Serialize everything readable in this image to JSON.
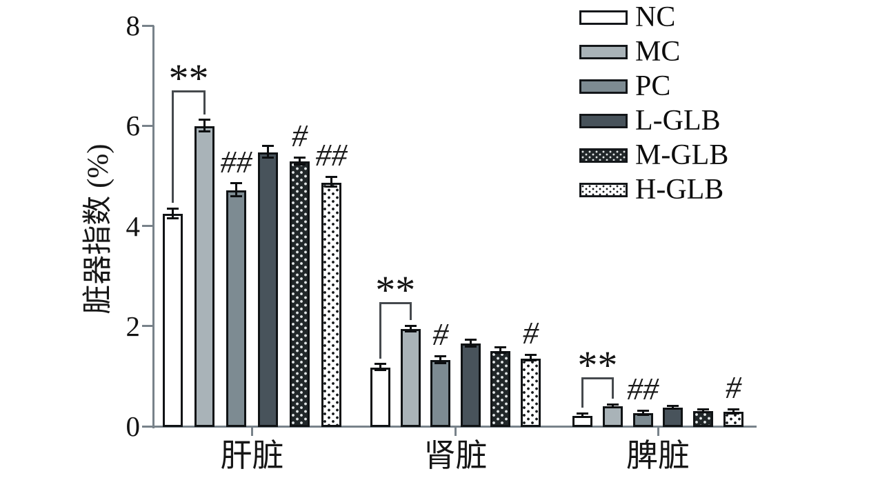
{
  "chart_data": {
    "type": "bar",
    "title": "",
    "ylabel": "脏器指数 (%)",
    "xlabel": "",
    "ylim": [
      0,
      8
    ],
    "yticks": [
      0,
      2,
      4,
      6,
      8
    ],
    "grid": false,
    "legend_position": "top-right",
    "categories": [
      "肝脏",
      "肾脏",
      "脾脏"
    ],
    "series": [
      {
        "name": "NC",
        "fill": "#ffffff",
        "pattern": "none",
        "dot_color": "",
        "values": [
          4.25,
          1.18,
          0.22
        ],
        "errors": [
          0.1,
          0.06,
          0.04
        ]
      },
      {
        "name": "MC",
        "fill": "#a9b3b8",
        "pattern": "none",
        "dot_color": "",
        "values": [
          6.0,
          1.95,
          0.41
        ],
        "errors": [
          0.12,
          0.06,
          0.03
        ]
      },
      {
        "name": "PC",
        "fill": "#7d8b92",
        "pattern": "none",
        "dot_color": "",
        "values": [
          4.72,
          1.33,
          0.27
        ],
        "errors": [
          0.13,
          0.07,
          0.04
        ]
      },
      {
        "name": "L-GLB",
        "fill": "#48535b",
        "pattern": "none",
        "dot_color": "",
        "values": [
          5.48,
          1.66,
          0.38
        ],
        "errors": [
          0.12,
          0.07,
          0.03
        ]
      },
      {
        "name": "M-GLB",
        "fill": "#212729",
        "pattern": "light-dots",
        "dot_color": "#e2e6e7",
        "values": [
          5.3,
          1.52,
          0.31
        ],
        "errors": [
          0.07,
          0.05,
          0.03
        ]
      },
      {
        "name": "H-GLB",
        "fill": "#ffffff",
        "pattern": "dark-dots",
        "dot_color": "#15181a",
        "values": [
          4.88,
          1.37,
          0.3
        ],
        "errors": [
          0.1,
          0.06,
          0.04
        ]
      }
    ],
    "sig_labels": [
      {
        "category": 0,
        "series": "PC",
        "text": "##"
      },
      {
        "category": 0,
        "series": "M-GLB",
        "text": "#"
      },
      {
        "category": 0,
        "series": "H-GLB",
        "text": "##"
      },
      {
        "category": 1,
        "series": "PC",
        "text": "#"
      },
      {
        "category": 1,
        "series": "H-GLB",
        "text": "#"
      },
      {
        "category": 2,
        "series": "PC",
        "text": "##"
      },
      {
        "category": 2,
        "series": "H-GLB",
        "text": "#"
      }
    ],
    "brackets": [
      {
        "category": 0,
        "from": "NC",
        "to": "MC",
        "text": "**",
        "top": 6.7
      },
      {
        "category": 1,
        "from": "NC",
        "to": "MC",
        "text": "**",
        "top": 2.48
      },
      {
        "category": 2,
        "from": "NC",
        "to": "MC",
        "text": "**",
        "top": 0.98
      }
    ]
  }
}
